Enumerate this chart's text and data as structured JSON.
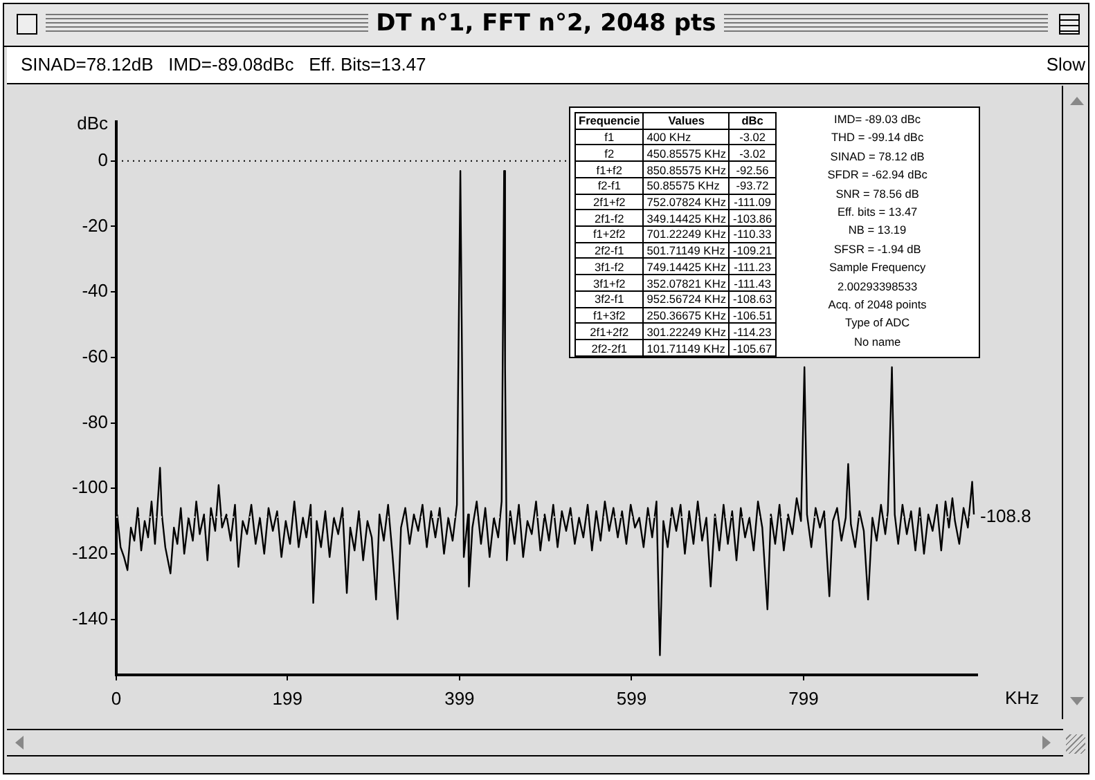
{
  "chart_data": [
    {
      "type": "line",
      "title": "DT n°1, FFT n°2, 2048 pts",
      "subtitle": "SINAD=78.12dB   IMD=-89.08dBc   Eff. Bits=13.47",
      "xlabel": "KHz",
      "ylabel": "dBc",
      "annotations": [
        "Slow"
      ],
      "x": [
        1,
        5,
        9,
        13,
        17,
        21,
        25,
        29,
        33,
        37,
        41,
        45,
        50.86,
        53,
        57,
        63,
        67,
        71,
        75,
        79,
        84,
        89,
        93,
        97,
        102,
        106,
        110,
        115,
        119,
        123,
        128,
        133,
        138,
        142,
        147,
        152,
        157,
        162,
        167,
        172,
        177,
        182,
        187,
        192,
        197,
        202,
        207,
        212,
        217,
        221,
        226,
        229,
        233,
        238,
        243,
        248,
        253,
        258,
        263,
        268,
        272,
        277,
        282,
        287,
        292,
        297,
        302,
        306,
        311,
        316,
        321,
        327,
        331,
        336,
        341,
        346,
        351,
        356,
        361,
        366,
        371,
        376,
        381,
        386,
        391,
        396,
        400,
        404,
        409,
        410,
        414,
        419,
        424,
        429,
        434,
        439,
        444,
        448,
        450.86,
        452,
        454,
        458,
        463,
        468,
        473,
        478,
        483,
        488,
        493,
        498,
        503,
        508,
        513,
        518,
        523,
        528,
        533,
        538,
        543,
        548,
        553,
        558,
        563,
        568,
        573,
        578,
        583,
        588,
        593,
        598,
        603,
        608,
        613,
        618,
        623,
        628,
        632,
        636,
        641,
        646,
        651,
        656,
        661,
        666,
        671,
        676,
        681,
        686,
        691,
        696,
        701,
        706,
        711,
        716,
        721,
        726,
        731,
        736,
        741,
        746,
        751,
        757,
        761,
        766,
        771,
        776,
        781,
        786,
        791,
        796,
        800,
        803,
        808,
        813,
        818,
        823,
        829,
        833,
        838,
        843,
        848,
        850.86,
        854,
        859,
        864,
        869,
        874,
        879,
        884,
        889,
        894,
        897,
        901.7,
        905,
        909,
        914,
        919,
        924,
        929,
        934,
        939,
        944,
        949,
        954,
        959,
        964,
        968,
        972,
        975,
        980,
        985,
        990,
        995,
        997
      ],
      "values": [
        -108,
        -118,
        -121,
        -125,
        -112,
        -116,
        -106,
        -119,
        -110,
        -115,
        -104,
        -117,
        -93.72,
        -108,
        -118,
        -126,
        -112,
        -117,
        -106,
        -120,
        -109,
        -116,
        -104,
        -114,
        -108,
        -122,
        -106,
        -113,
        -99,
        -112,
        -108,
        -116,
        -105,
        -124,
        -110,
        -114,
        -105,
        -117,
        -109,
        -120,
        -106,
        -113,
        -107,
        -121,
        -110,
        -117,
        -104,
        -118,
        -109,
        -115,
        -105,
        -135,
        -110,
        -118,
        -107,
        -121,
        -109,
        -114,
        -106,
        -132,
        -112,
        -119,
        -107,
        -122,
        -110,
        -115,
        -134,
        -108,
        -116,
        -105,
        -120,
        -140,
        -112,
        -106,
        -117,
        -108,
        -113,
        -105,
        -118,
        -107,
        -115,
        -106,
        -120,
        -109,
        -116,
        -105,
        -3.02,
        -121,
        -108,
        -130,
        -112,
        -104,
        -117,
        -106,
        -121,
        -109,
        -115,
        -104,
        -3.02,
        -63,
        -122,
        -107,
        -117,
        -105,
        -121,
        -110,
        -114,
        -104,
        -119,
        -108,
        -116,
        -105,
        -118,
        -107,
        -113,
        -106,
        -117,
        -109,
        -115,
        -105,
        -119,
        -107,
        -116,
        -104,
        -113,
        -106,
        -115,
        -107,
        -117,
        -105,
        -112,
        -109,
        -118,
        -106,
        -115,
        -104,
        -151,
        -110,
        -118,
        -106,
        -113,
        -105,
        -120,
        -107,
        -117,
        -104,
        -116,
        -109,
        -130,
        -108,
        -119,
        -105,
        -117,
        -107,
        -122,
        -106,
        -115,
        -109,
        -119,
        -104,
        -112,
        -137,
        -108,
        -117,
        -105,
        -119,
        -108,
        -114,
        -103,
        -110,
        -63,
        -108,
        -118,
        -106,
        -112,
        -107,
        -133,
        -110,
        -106,
        -116,
        -109,
        -92.56,
        -111,
        -118,
        -107,
        -113,
        -134,
        -109,
        -116,
        -105,
        -114,
        -107,
        -63,
        -108,
        -117,
        -105,
        -114,
        -107,
        -119,
        -106,
        -120,
        -108,
        -113,
        -105,
        -119,
        -104,
        -112,
        -103,
        -110,
        -117,
        -106,
        -112,
        -98,
        -108
      ],
      "color": "#000000",
      "marker": "none",
      "line_style": "solid",
      "xlim": [
        0,
        1001
      ],
      "xticks": [
        0,
        199,
        399,
        599,
        799
      ],
      "ylim": [
        -157,
        12
      ],
      "yticks": [
        0,
        -20,
        -40,
        -60,
        -80,
        -100,
        -120,
        -140
      ],
      "grid": false,
      "legend": false,
      "ref_lines": [
        {
          "axis": "y",
          "value": 0,
          "color": "#000000",
          "line_style": "dotted"
        },
        {
          "axis": "y",
          "value": -108.8,
          "label": "-108.8",
          "color": "#e0e0e0",
          "line_style": "dotted"
        }
      ]
    },
    {
      "type": "other",
      "ylabel": "Frequencie",
      "categories": [
        "Values",
        "dBc"
      ],
      "y_categories": [
        "f1",
        "f2",
        "f1+f2",
        "f2-f1",
        "2f1+f2",
        "2f1-f2",
        "f1+2f2",
        "2f2-f1",
        "3f1-f2",
        "3f1+f2",
        "3f2-f1",
        "f1+3f2",
        "2f1+2f2",
        "2f2-2f1"
      ],
      "cell_labels": [
        [
          "400 KHz",
          "-3.02"
        ],
        [
          "450.85575 KHz",
          "-3.02"
        ],
        [
          "850.85575 KHz",
          "-92.56"
        ],
        [
          "50.85575 KHz",
          "-93.72"
        ],
        [
          "752.07824 KHz",
          "-111.09"
        ],
        [
          "349.14425 KHz",
          "-103.86"
        ],
        [
          "701.22249 KHz",
          "-110.33"
        ],
        [
          "501.71149 KHz",
          "-109.21"
        ],
        [
          "749.14425 KHz",
          "-111.23"
        ],
        [
          "352.07821 KHz",
          "-111.43"
        ],
        [
          "952.56724 KHz",
          "-108.63"
        ],
        [
          "250.36675 KHz",
          "-106.51"
        ],
        [
          "301.22249 KHz",
          "-114.23"
        ],
        [
          "101.71149 KHz",
          "-105.67"
        ]
      ],
      "annotations": [
        "IMD= -89.03 dBc",
        "THD = -99.14 dBc",
        "SINAD = 78.12 dB",
        "SFDR = -62.94 dBc",
        "SNR = 78.56 dB",
        "Eff. bits = 13.47",
        "NB = 13.19",
        "SFSR = -1.94 dB",
        "Sample Frequency",
        "2.00293398533",
        "Acq. of 2048 points",
        "Type of ADC",
        "No name"
      ]
    }
  ]
}
